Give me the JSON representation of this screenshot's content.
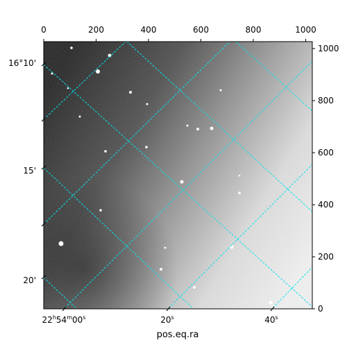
{
  "figure": {
    "colors": {
      "grid": "#00e5ee",
      "frame": "#000000",
      "background": "#ffffff"
    },
    "x_label": "pos.eq.ra",
    "ra_ticks": [
      {
        "hours": "22",
        "hsup": "h",
        "minutes": "54",
        "msup": "m",
        "seconds": "00",
        "ssup": "s"
      },
      {
        "value": "20",
        "sup": "s"
      },
      {
        "value": "40",
        "sup": "s"
      }
    ],
    "dec_ticks": [
      "16°10'",
      "15'",
      "20'"
    ],
    "pixel_x_ticks": [
      "0",
      "200",
      "400",
      "600",
      "800",
      "1000"
    ],
    "pixel_y_ticks": [
      "1000",
      "800",
      "600",
      "400",
      "200",
      "0"
    ]
  }
}
